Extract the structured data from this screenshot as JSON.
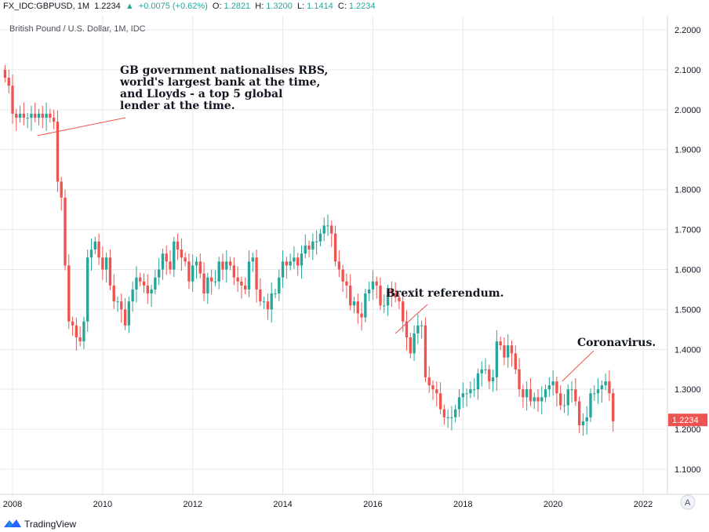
{
  "header": {
    "symbol": "FX_IDC:GBPUSD, 1M",
    "last": "1.2234",
    "change_icon": "triangle-up-icon",
    "change": "+0.0075 (+0.62%)",
    "o_label": "O:",
    "o": "1.2821",
    "h_label": "H:",
    "h": "1.3200",
    "l_label": "L:",
    "l": "1.1414",
    "c_label": "C:",
    "c": "1.2234"
  },
  "footer": {
    "brand": "TradingView",
    "logo_icon": "tradingview-logo-icon"
  },
  "colors": {
    "up": "#26a69a",
    "down": "#ef5350",
    "grid": "#e9e9ea",
    "axis_text": "#131722",
    "price_tag": "#ef5350"
  },
  "chart_data": {
    "type": "candlestick",
    "title": "British Pound / U.S. Dollar, 1M, IDC",
    "xlabel": "",
    "ylabel": "",
    "ylim": [
      1.05,
      2.25
    ],
    "xlim": [
      2007.85,
      2023.15
    ],
    "x_ticks": [
      "2008",
      "2010",
      "2012",
      "2014",
      "2016",
      "2018",
      "2020",
      "2022"
    ],
    "y_ticks": [
      "2.2000",
      "2.1000",
      "2.0000",
      "1.9000",
      "1.8000",
      "1.7000",
      "1.6000",
      "1.5000",
      "1.4000",
      "1.3000",
      "1.2000",
      "1.1000"
    ],
    "last_price_label": "1.2234",
    "scale_mode_button": "A",
    "grid": true,
    "series": [
      {
        "start": "2007-11",
        "interval": "1M",
        "close": [
          2.08,
          2.06,
          1.99,
          1.98,
          1.99,
          1.98,
          1.98,
          1.99,
          1.98,
          1.99,
          1.98,
          1.99,
          1.98,
          1.97,
          1.82,
          1.78,
          1.61,
          1.47,
          1.46,
          1.43,
          1.42,
          1.47,
          1.63,
          1.65,
          1.67,
          1.63,
          1.6,
          1.63,
          1.56,
          1.52,
          1.52,
          1.5,
          1.46,
          1.52,
          1.55,
          1.58,
          1.57,
          1.56,
          1.54,
          1.55,
          1.58,
          1.6,
          1.64,
          1.62,
          1.6,
          1.67,
          1.65,
          1.63,
          1.62,
          1.57,
          1.61,
          1.62,
          1.59,
          1.54,
          1.58,
          1.57,
          1.57,
          1.62,
          1.6,
          1.62,
          1.61,
          1.58,
          1.57,
          1.56,
          1.55,
          1.62,
          1.63,
          1.55,
          1.52,
          1.52,
          1.5,
          1.54,
          1.54,
          1.58,
          1.62,
          1.61,
          1.62,
          1.63,
          1.61,
          1.64,
          1.66,
          1.65,
          1.67,
          1.67,
          1.69,
          1.71,
          1.71,
          1.69,
          1.62,
          1.6,
          1.57,
          1.56,
          1.51,
          1.52,
          1.49,
          1.48,
          1.54,
          1.55,
          1.57,
          1.56,
          1.51,
          1.51,
          1.55,
          1.54,
          1.53,
          1.52,
          1.47,
          1.43,
          1.39,
          1.44,
          1.46,
          1.46,
          1.33,
          1.31,
          1.3,
          1.29,
          1.25,
          1.23,
          1.23,
          1.23,
          1.25,
          1.28,
          1.29,
          1.29,
          1.3,
          1.3,
          1.34,
          1.35,
          1.35,
          1.32,
          1.33,
          1.42,
          1.41,
          1.38,
          1.41,
          1.39,
          1.35,
          1.3,
          1.28,
          1.3,
          1.27,
          1.28,
          1.27,
          1.28,
          1.3,
          1.31,
          1.32,
          1.29,
          1.26,
          1.26,
          1.3,
          1.3,
          1.27,
          1.21,
          1.22,
          1.23,
          1.29,
          1.29,
          1.3,
          1.31,
          1.32,
          1.29,
          1.22
        ]
      }
    ],
    "annotations": [
      {
        "text": [
          "GB government nationalises RBS,",
          "world's largest bank at the time,",
          "and Lloyds - a top 5 global",
          "lender at the time."
        ],
        "date": 2008.55,
        "price": 1.935
      },
      {
        "text": [
          "Brexit referendum."
        ],
        "date": 2016.5,
        "price": 1.44
      },
      {
        "text": [
          "Coronavirus."
        ],
        "date": 2020.2,
        "price": 1.32
      }
    ]
  }
}
